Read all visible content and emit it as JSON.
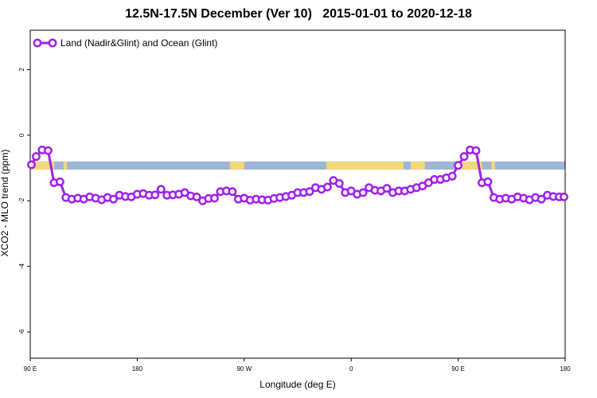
{
  "chart_data": {
    "type": "line",
    "title": "12.5N-17.5N December (Ver 10)   2015-01-01 to 2020-12-18",
    "xlabel": "Longitude (deg E)",
    "ylabel": "XCO2 - MLO trend (ppm)",
    "x_ticks": [
      {
        "value": 90,
        "label": "90 E"
      },
      {
        "value": 180,
        "label": "180"
      },
      {
        "value": 270,
        "label": "90 W"
      },
      {
        "value": 360,
        "label": "0"
      },
      {
        "value": 450,
        "label": "90 E"
      },
      {
        "value": 540,
        "label": "180"
      }
    ],
    "y_ticks": [
      {
        "value": 2,
        "label": "2"
      },
      {
        "value": 0,
        "label": "0"
      },
      {
        "value": -2,
        "label": "-2"
      },
      {
        "value": -4,
        "label": "-4"
      },
      {
        "value": -6,
        "label": "-6"
      }
    ],
    "xlim": [
      90,
      540
    ],
    "ylim": [
      -6.8,
      3.2
    ],
    "grid": false,
    "legend_position": "top-left",
    "surface_strip": {
      "y_range": [
        -1.05,
        -0.8
      ],
      "ocean_color": "#9fb5d6",
      "land_color": "#f2d87a",
      "land_segments": [
        [
          90,
          110
        ],
        [
          118,
          121
        ],
        [
          258,
          270
        ],
        [
          339,
          404
        ],
        [
          410,
          422
        ],
        [
          450,
          470
        ],
        [
          478,
          481
        ]
      ]
    },
    "series": [
      {
        "name": "Land (Nadir&Glint) and Ocean (Glint)",
        "color": "#a020f0",
        "x": [
          91,
          95,
          100,
          105,
          110,
          115,
          120,
          125,
          130,
          135,
          140,
          145,
          150,
          155,
          160,
          165,
          170,
          175,
          180,
          185,
          190,
          195,
          200,
          205,
          210,
          215,
          220,
          225,
          230,
          235,
          240,
          245,
          250,
          255,
          260,
          265,
          270,
          275,
          280,
          285,
          290,
          295,
          300,
          305,
          310,
          315,
          320,
          325,
          330,
          335,
          340,
          345,
          350,
          355,
          360,
          365,
          370,
          375,
          380,
          385,
          390,
          395,
          400,
          405,
          410,
          415,
          420,
          425,
          430,
          435,
          440,
          445,
          450,
          455,
          460,
          465,
          470,
          475,
          480,
          485,
          490,
          495,
          500,
          505,
          510,
          515,
          520,
          525,
          530,
          535,
          539
        ],
        "y": [
          -0.9,
          -0.65,
          -0.45,
          -0.47,
          -1.45,
          -1.42,
          -1.9,
          -1.95,
          -1.92,
          -1.95,
          -1.88,
          -1.92,
          -1.97,
          -1.9,
          -1.95,
          -1.83,
          -1.87,
          -1.88,
          -1.8,
          -1.78,
          -1.83,
          -1.82,
          -1.65,
          -1.83,
          -1.82,
          -1.8,
          -1.75,
          -1.85,
          -1.88,
          -2.0,
          -1.93,
          -1.92,
          -1.72,
          -1.7,
          -1.72,
          -1.95,
          -1.92,
          -1.98,
          -1.95,
          -1.97,
          -1.98,
          -1.93,
          -1.9,
          -1.87,
          -1.83,
          -1.75,
          -1.75,
          -1.72,
          -1.6,
          -1.65,
          -1.58,
          -1.38,
          -1.47,
          -1.75,
          -1.7,
          -1.8,
          -1.75,
          -1.6,
          -1.68,
          -1.7,
          -1.62,
          -1.75,
          -1.7,
          -1.7,
          -1.65,
          -1.6,
          -1.55,
          -1.45,
          -1.35,
          -1.35,
          -1.3,
          -1.25,
          -0.92,
          -0.65,
          -0.45,
          -0.47,
          -1.45,
          -1.42,
          -1.9,
          -1.95,
          -1.92,
          -1.95,
          -1.88,
          -1.92,
          -1.97,
          -1.9,
          -1.95,
          -1.83,
          -1.87,
          -1.88,
          -1.88
        ]
      }
    ]
  }
}
